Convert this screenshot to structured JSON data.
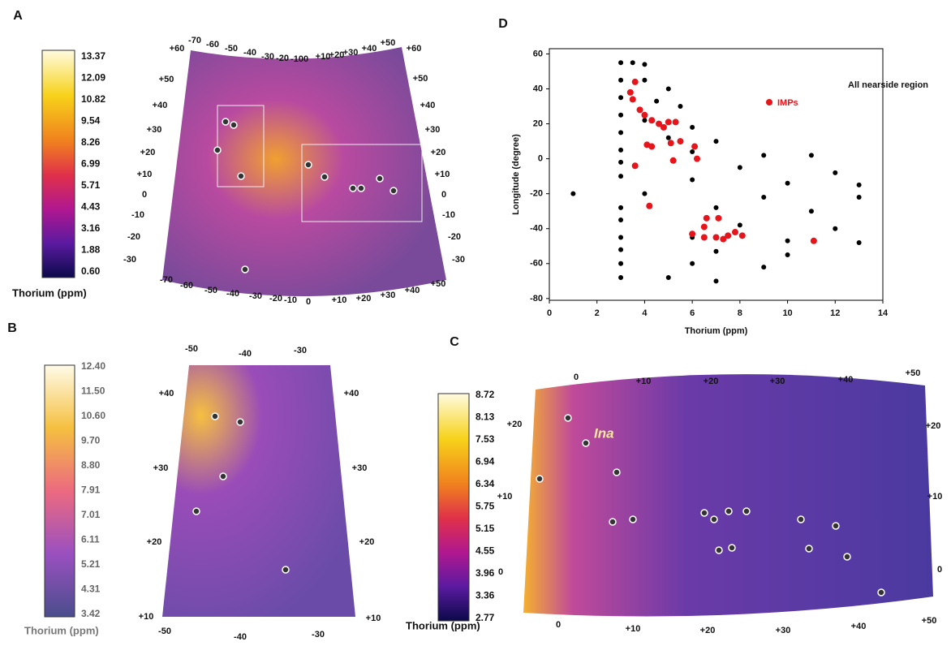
{
  "panels": {
    "A": {
      "label": "A",
      "colorbar": {
        "labels": [
          "13.37",
          "12.09",
          "10.82",
          "9.54",
          "8.26",
          "6.99",
          "5.71",
          "4.43",
          "3.16",
          "1.88",
          "0.60"
        ],
        "title": "Thorium (ppm)"
      },
      "map": {
        "top": [
          "-70",
          "-60",
          "-50",
          "-40",
          "-30",
          "-20",
          "-10",
          "0",
          "+10",
          "+20",
          "+30",
          "+40",
          "+50"
        ],
        "left": [
          "+60",
          "+50",
          "+40",
          "+30",
          "+20",
          "+10",
          "0",
          "-10",
          "-20",
          "-30"
        ],
        "right": [
          "+60",
          "+50",
          "+40",
          "+30",
          "+20",
          "+10",
          "0",
          "-10",
          "-20",
          "-30"
        ],
        "bottom": [
          "-70",
          "-60",
          "-50",
          "-40",
          "-30",
          "-20",
          "-10",
          "0",
          "+10",
          "+20",
          "+30",
          "+40",
          "+50"
        ]
      }
    },
    "B": {
      "label": "B",
      "colorbar": {
        "labels": [
          "12.40",
          "11.50",
          "10.60",
          "9.70",
          "8.80",
          "7.91",
          "7.01",
          "6.11",
          "5.21",
          "4.31",
          "3.42"
        ],
        "title": "Thorium (ppm)"
      },
      "map": {
        "top": [
          "-50",
          "-40",
          "-30"
        ],
        "left": [
          "+40",
          "+30",
          "+20",
          "+10"
        ],
        "right": [
          "+40",
          "+30",
          "+20",
          "+10"
        ],
        "bottom": [
          "-50",
          "-40",
          "-30"
        ]
      }
    },
    "C": {
      "label": "C",
      "colorbar": {
        "labels": [
          "8.72",
          "8.13",
          "7.53",
          "6.94",
          "6.34",
          "5.75",
          "5.15",
          "4.55",
          "3.96",
          "3.36",
          "2.77"
        ],
        "title": "Thorium (ppm)"
      },
      "map": {
        "top": [
          "0",
          "+10",
          "+20",
          "+30",
          "+40",
          "+50"
        ],
        "left": [
          "+20",
          "+10",
          "0"
        ],
        "right": [
          "+20",
          "+10",
          "0"
        ],
        "bottom": [
          "0",
          "+10",
          "+20",
          "+30",
          "+40",
          "+50"
        ]
      },
      "annotation": "Ina"
    }
  },
  "chart_data": {
    "type": "scatter",
    "label": "D",
    "xlabel": "Thorium (ppm)",
    "ylabel": "Longitude (degree)",
    "xlim": [
      0,
      14
    ],
    "ylim": [
      -81,
      63
    ],
    "xticks": [
      0,
      2,
      4,
      6,
      8,
      10,
      12,
      14
    ],
    "yticks": [
      60,
      40,
      20,
      0,
      -20,
      -40,
      -60,
      -80
    ],
    "series": [
      {
        "name": "All nearside region",
        "color": "#000000",
        "x": [
          3,
          3.5,
          4,
          3,
          4,
          5,
          3,
          4.5,
          5.5,
          3,
          4,
          6,
          3,
          5,
          7,
          3,
          6,
          9,
          11,
          3,
          8,
          12,
          3,
          6,
          10,
          13,
          1,
          4,
          9,
          13,
          3,
          7,
          11,
          3,
          8,
          12,
          3,
          6,
          10,
          13,
          3,
          7,
          10,
          3,
          6,
          9,
          3,
          5,
          7
        ],
        "values": [
          55,
          55,
          54,
          45,
          45,
          40,
          35,
          33,
          30,
          25,
          22,
          18,
          15,
          12,
          10,
          5,
          4,
          2,
          2,
          -2,
          -5,
          -8,
          -10,
          -12,
          -14,
          -15,
          -20,
          -20,
          -22,
          -22,
          -28,
          -28,
          -30,
          -35,
          -38,
          -40,
          -45,
          -45,
          -47,
          -48,
          -52,
          -53,
          -55,
          -60,
          -60,
          -62,
          -68,
          -68,
          -70
        ]
      },
      {
        "name": "IMPs",
        "color": "#e8141b",
        "x": [
          3.6,
          3.4,
          3.5,
          3.8,
          4,
          4.3,
          4.6,
          5,
          5.3,
          4.8,
          4.1,
          4.3,
          5.1,
          5.5,
          6.1,
          6.2,
          5.2,
          3.6,
          4.2,
          6.6,
          7.1,
          6.5,
          6,
          6.5,
          7,
          7.5,
          7.8,
          8.1,
          7.3,
          11.1
        ],
        "values": [
          44,
          38,
          34,
          28,
          25,
          22,
          20,
          21,
          21,
          18,
          8,
          7,
          9,
          10,
          7,
          0,
          -1,
          -4,
          -27,
          -34,
          -34,
          -39,
          -43,
          -45,
          -45,
          -44,
          -42,
          -44,
          -46,
          -47
        ]
      }
    ]
  }
}
